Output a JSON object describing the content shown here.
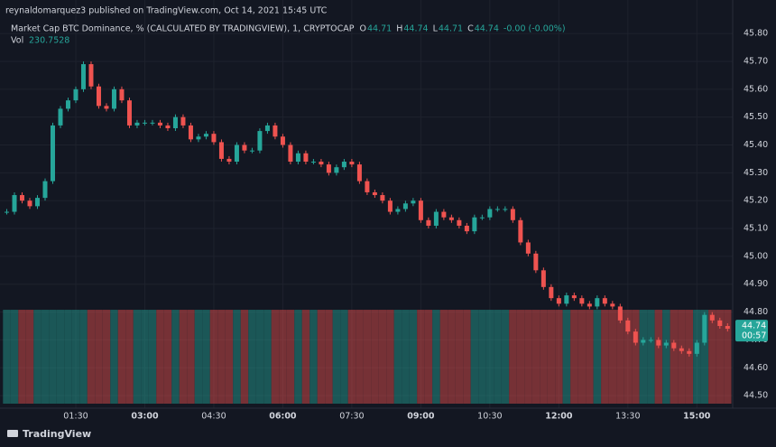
{
  "header": {
    "published": "reynaldomarquez3 published on TradingView.com, Oct 14, 2021 15:45 UTC"
  },
  "legend": {
    "symbol": "Market Cap BTC Dominance, %  (CALCULATED BY TRADINGVIEW), 1, CRYPTOCAP",
    "open_label": "O",
    "open": 44.71,
    "high_label": "H",
    "high": 44.74,
    "low_label": "L",
    "low": 44.71,
    "close_label": "C",
    "close": 44.74,
    "change": "-0.00 (-0.00%)",
    "volume_label": "Vol",
    "volume": 230.7528
  },
  "price_tag": {
    "value": 44.74,
    "countdown": "00:57"
  },
  "footer": {
    "brand": "TradingView"
  },
  "chart_data": {
    "type": "candles",
    "x": [
      "00:00",
      "00:10",
      "00:20",
      "00:30",
      "00:40",
      "00:50",
      "01:00",
      "01:10",
      "01:20",
      "01:30",
      "01:40",
      "01:50",
      "02:00",
      "02:10",
      "02:20",
      "02:30",
      "02:40",
      "02:50",
      "03:00",
      "03:10",
      "03:20",
      "03:30",
      "03:40",
      "03:50",
      "04:00",
      "04:10",
      "04:20",
      "04:30",
      "04:40",
      "04:50",
      "05:00",
      "05:10",
      "05:20",
      "05:30",
      "05:40",
      "05:50",
      "06:00",
      "06:10",
      "06:20",
      "06:30",
      "06:40",
      "06:50",
      "07:00",
      "07:10",
      "07:20",
      "07:30",
      "07:40",
      "07:50",
      "08:00",
      "08:10",
      "08:20",
      "08:30",
      "08:40",
      "08:50",
      "09:00",
      "09:10",
      "09:20",
      "09:30",
      "09:40",
      "09:50",
      "10:00",
      "10:10",
      "10:20",
      "10:30",
      "10:40",
      "10:50",
      "11:00",
      "11:10",
      "11:20",
      "11:30",
      "11:40",
      "11:50",
      "12:00",
      "12:10",
      "12:20",
      "12:30",
      "12:40",
      "12:50",
      "13:00",
      "13:10",
      "13:20",
      "13:30",
      "13:40",
      "13:50",
      "14:00",
      "14:10",
      "14:20",
      "14:30",
      "14:40",
      "14:50",
      "15:00",
      "15:10",
      "15:20",
      "15:30",
      "15:40"
    ],
    "series": [
      {
        "name": "Market Cap BTC Dominance",
        "up_color": "#26a69a",
        "down_color": "#ef5350",
        "values": [
          45.16,
          45.22,
          45.2,
          45.18,
          45.21,
          45.27,
          45.47,
          45.53,
          45.56,
          45.6,
          45.69,
          45.61,
          45.54,
          45.53,
          45.6,
          45.56,
          45.47,
          45.48,
          45.48,
          45.48,
          45.47,
          45.46,
          45.5,
          45.47,
          45.42,
          45.43,
          45.44,
          45.41,
          45.35,
          45.34,
          45.4,
          45.38,
          45.38,
          45.45,
          45.47,
          45.43,
          45.4,
          45.34,
          45.37,
          45.34,
          45.34,
          45.33,
          45.3,
          45.32,
          45.34,
          45.33,
          45.27,
          45.23,
          45.22,
          45.2,
          45.16,
          45.17,
          45.19,
          45.2,
          45.13,
          45.11,
          45.16,
          45.14,
          45.13,
          45.11,
          45.09,
          45.14,
          45.14,
          45.17,
          45.17,
          45.17,
          45.13,
          45.05,
          45.01,
          44.95,
          44.89,
          44.85,
          44.83,
          44.86,
          44.85,
          44.83,
          44.82,
          44.85,
          44.83,
          44.82,
          44.77,
          44.73,
          44.69,
          44.7,
          44.7,
          44.68,
          44.69,
          44.67,
          44.66,
          44.65,
          44.69,
          44.79,
          44.77,
          44.75,
          44.74
        ]
      }
    ],
    "xlim": [
      "00:00",
      "15:42"
    ],
    "xticks": [
      "01:30",
      "03:00",
      "04:30",
      "06:00",
      "07:30",
      "09:00",
      "10:30",
      "12:00",
      "13:30",
      "15:00"
    ],
    "ylim": [
      44.455,
      45.862
    ],
    "yticks": [
      {
        "value": 45.8,
        "label": "45.80"
      },
      {
        "value": 45.7,
        "label": "45.70"
      },
      {
        "value": 45.6,
        "label": "45.60"
      },
      {
        "value": 45.5,
        "label": "45.50"
      },
      {
        "value": 45.4,
        "label": "45.40"
      },
      {
        "value": 45.3,
        "label": "45.30"
      },
      {
        "value": 45.2,
        "label": "45.20"
      },
      {
        "value": 45.1,
        "label": "45.10"
      },
      {
        "value": 45.0,
        "label": "45.00"
      },
      {
        "value": 44.9,
        "label": "44.90"
      },
      {
        "value": 44.8,
        "label": "44.80"
      },
      {
        "value": 44.7,
        "label": "44.70"
      },
      {
        "value": 44.6,
        "label": "44.60"
      },
      {
        "value": 44.5,
        "label": "44.50"
      }
    ],
    "grid": true
  }
}
